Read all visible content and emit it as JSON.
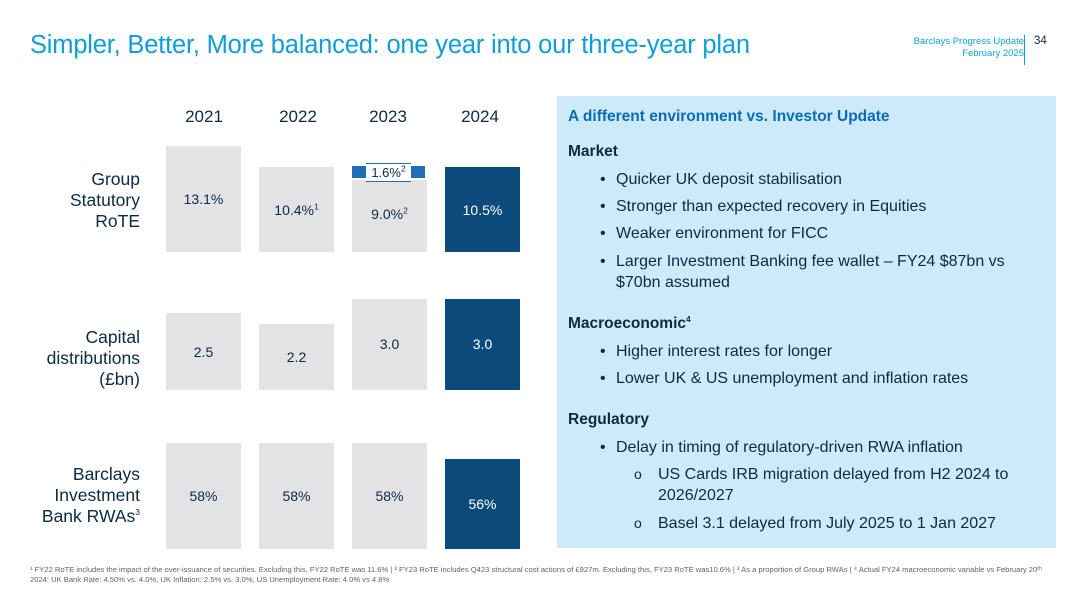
{
  "header": {
    "title": "Simpler, Better, More balanced: one year into our three-year plan",
    "doc_title": "Barclays Progress Update",
    "doc_date": "February 2025",
    "page_number": "34"
  },
  "years": [
    "2021",
    "2022",
    "2023",
    "2024"
  ],
  "rows": {
    "rote": {
      "label_1": "Group",
      "label_2": "Statutory",
      "label_3": "RoTE",
      "values": [
        "13.1%",
        "10.4%",
        "9.0%",
        "10.5%"
      ],
      "sup_2022": "1",
      "sup_2023": "2",
      "tag": "1.6%",
      "tag_sup": "2"
    },
    "capital": {
      "label_1": "Capital",
      "label_2": "distributions",
      "label_3": "(£bn)",
      "values": [
        "2.5",
        "2.2",
        "3.0",
        "3.0"
      ]
    },
    "rwa": {
      "label_1": "Barclays",
      "label_2": "Investment",
      "label_3": "Bank RWAs",
      "label_sup": "3",
      "values": [
        "58%",
        "58%",
        "58%",
        "56%"
      ]
    }
  },
  "panel": {
    "heading": "A different environment vs. Investor Update",
    "market": {
      "title": "Market",
      "items": [
        "Quicker UK deposit stabilisation",
        "Stronger than expected recovery in Equities",
        "Weaker environment for FICC",
        "Larger Investment Banking fee wallet – FY24 $87bn vs",
        "$70bn assumed"
      ]
    },
    "macro": {
      "title": "Macroeconomic",
      "title_sup": "4",
      "items": [
        "Higher interest rates for longer",
        "Lower UK & US unemployment and inflation rates"
      ]
    },
    "regulatory": {
      "title": "Regulatory",
      "items": [
        "Delay in timing of regulatory-driven RWA inflation"
      ],
      "subitems": [
        "US Cards IRB migration delayed from H2 2024 to",
        "2026/2027",
        "Basel 3.1 delayed from July 2025 to 1 Jan 2027"
      ]
    },
    "bullet": "•",
    "sub_bullet": "o"
  },
  "footnote": "¹ FY22 RoTE includes the impact of the over-issuance of securities. Excluding this, FY22 RoTE was 11.6% | ² FY23 RoTE includes Q423 structural cost actions of £927m. Excluding this, FY23 RoTE was10.6% | ³ As a proportion of Group RWAs | ⁴ Actual FY24 macroeconomic variable vs February 20ᵗʰ 2024: UK Bank Rate: 4.50% vs. 4.0%, UK Inflation: 2.5% vs. 3.0%, US Unemployment Rate: 4.0% vs 4.8%",
  "colors": {
    "accent": "#0e9ed8",
    "dark_bar": "#0c4a7c",
    "light_bar": "#e3e3e6",
    "panel": "#cdeafb"
  }
}
